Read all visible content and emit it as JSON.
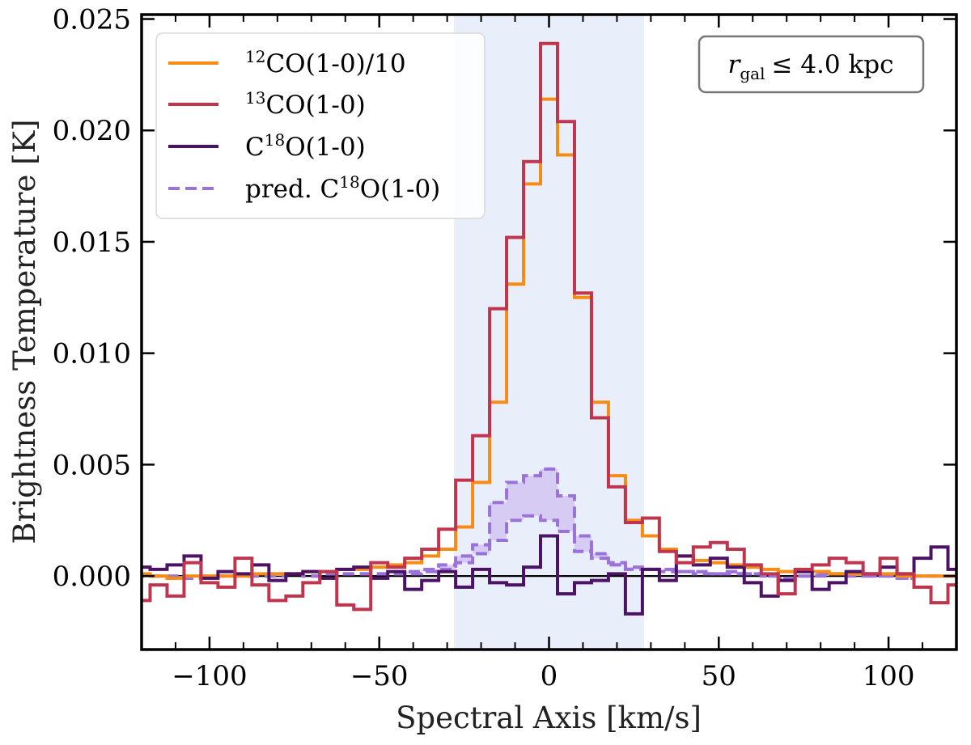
{
  "chart_data": {
    "type": "line",
    "step": true,
    "xlabel": "Spectral Axis [km/s]",
    "ylabel": "Brightness Temperature [K]",
    "xlim": [
      -120,
      120
    ],
    "ylim": [
      -0.0033,
      0.0252
    ],
    "xticks": [
      -100,
      -50,
      0,
      50,
      100
    ],
    "xtick_labels": [
      "−100",
      "−50",
      "0",
      "50",
      "100"
    ],
    "yticks": [
      0.0,
      0.005,
      0.01,
      0.015,
      0.02,
      0.025
    ],
    "ytick_labels": [
      "0.000",
      "0.005",
      "0.010",
      "0.015",
      "0.020",
      "0.025"
    ],
    "zero_line": 0.0,
    "shaded_band": {
      "x_from": -28,
      "x_to": 28,
      "color": "#e9eefb"
    },
    "annotation": {
      "lhs": "r",
      "subscript": "gal",
      "rhs": "≤ 4.0 kpc"
    },
    "x": [
      -120,
      -115,
      -110,
      -105,
      -100,
      -95,
      -90,
      -85,
      -80,
      -75,
      -70,
      -65,
      -60,
      -55,
      -50,
      -45,
      -40,
      -35,
      -30,
      -25,
      -20,
      -15,
      -10,
      -5,
      0,
      5,
      10,
      15,
      20,
      25,
      30,
      35,
      40,
      45,
      50,
      55,
      60,
      65,
      70,
      75,
      80,
      85,
      90,
      95,
      100,
      105,
      110,
      115,
      120
    ],
    "series": [
      {
        "name": "12CO(1-0)/10",
        "legend": {
          "sup": "12",
          "main": "CO(1-0)/10"
        },
        "color": "#f78b14",
        "dash": "solid",
        "values": [
          0.0001,
          0.0,
          -0.0001,
          0.0,
          0.0,
          0.0,
          0.0,
          0.0001,
          0.0001,
          0.0001,
          0.0002,
          0.0002,
          0.0003,
          0.0003,
          0.0004,
          0.0005,
          0.0006,
          0.0009,
          0.0012,
          0.0022,
          0.0042,
          0.0078,
          0.0131,
          0.0176,
          0.0214,
          0.0189,
          0.0125,
          0.0078,
          0.0045,
          0.0025,
          0.0018,
          0.0012,
          0.0009,
          0.0007,
          0.0006,
          0.0005,
          0.0004,
          0.0003,
          0.0002,
          0.0002,
          0.0002,
          0.0001,
          0.0001,
          0.0001,
          0.0001,
          0.0,
          0.0,
          0.0,
          0.0
        ]
      },
      {
        "name": "13CO(1-0)",
        "legend": {
          "sup": "13",
          "main": "CO(1-0)"
        },
        "color": "#c0354e",
        "dash": "solid",
        "values": [
          -0.0011,
          -0.0004,
          -0.0009,
          0.0006,
          -0.0003,
          -0.0005,
          0.0008,
          -0.0004,
          -0.0011,
          -0.0009,
          -0.0003,
          0.0002,
          -0.0013,
          -0.0015,
          0.0006,
          0.0004,
          0.0008,
          0.0012,
          0.0021,
          0.0043,
          0.0063,
          0.012,
          0.0152,
          0.0186,
          0.0239,
          0.0204,
          0.0127,
          0.0071,
          0.004,
          0.0024,
          0.0026,
          0.0011,
          0.0006,
          0.0013,
          0.0015,
          0.0012,
          0.0005,
          0.0001,
          -0.0008,
          0.0003,
          0.0005,
          0.0008,
          0.0006,
          0.0001,
          0.0008,
          0.0001,
          -0.0005,
          -0.0012,
          -0.0004
        ]
      },
      {
        "name": "C18O(1-0)",
        "legend": {
          "pre": "C",
          "sup": "18",
          "main": "O(1-0)"
        },
        "color": "#4b1266",
        "dash": "solid",
        "values": [
          0.0004,
          0.0003,
          0.0005,
          0.0009,
          -0.0001,
          0.0002,
          0.0001,
          0.0005,
          -0.0002,
          0.0001,
          0.0002,
          -0.0001,
          0.0003,
          0.0004,
          -0.0001,
          0.0002,
          -0.0006,
          -0.0002,
          0.0002,
          -0.0005,
          0.0003,
          -0.0003,
          -0.0004,
          0.0004,
          0.0018,
          -0.0008,
          -0.0003,
          -0.0002,
          0.0001,
          -0.0017,
          0.0003,
          -0.0002,
          0.0009,
          0.0005,
          0.0008,
          0.0004,
          -0.0003,
          -0.0009,
          -0.0002,
          0.0002,
          -0.0006,
          -0.0003,
          0.0002,
          0.0001,
          0.0004,
          0.0001,
          0.0008,
          0.0013,
          0.0003
        ]
      },
      {
        "name": "pred. C18O(1-0)",
        "legend": {
          "pre": "pred. C",
          "sup": "18",
          "main": "O(1-0)"
        },
        "color": "#9b72d8",
        "dash": "dashed",
        "fill_color": "#d2c4f0",
        "values_upper": [
          0.0,
          0.0,
          0.0,
          -0.0001,
          0.0,
          0.0,
          0.0,
          0.0,
          0.0001,
          0.0001,
          0.0,
          0.0001,
          0.0001,
          0.0001,
          0.0001,
          0.0001,
          0.0002,
          0.0003,
          0.0005,
          0.0009,
          0.0014,
          0.0033,
          0.0042,
          0.0045,
          0.0048,
          0.0036,
          0.0018,
          0.001,
          0.0006,
          0.0004,
          0.0003,
          0.0003,
          0.0002,
          0.0002,
          0.0001,
          0.0002,
          0.0001,
          0.0,
          -0.0001,
          0.0,
          0.0001,
          0.0001,
          0.0001,
          0.0,
          0.0,
          -0.0001,
          0.0,
          0.0,
          0.0
        ],
        "values_lower": [
          0.0,
          0.0,
          -0.0001,
          -0.0001,
          0.0,
          0.0,
          0.0,
          0.0,
          0.0,
          0.0001,
          0.0,
          0.0001,
          0.0001,
          0.0001,
          0.0001,
          0.0001,
          0.0001,
          0.0002,
          0.0003,
          0.0006,
          0.001,
          0.0016,
          0.0025,
          0.0027,
          0.0025,
          0.002,
          0.0011,
          0.0008,
          0.0005,
          0.0003,
          0.0003,
          0.0002,
          0.0002,
          0.0001,
          0.0001,
          0.0001,
          0.0001,
          0.0,
          -0.0001,
          0.0,
          0.0,
          0.0001,
          0.0,
          0.0,
          0.0,
          -0.0001,
          0.0,
          0.0,
          0.0
        ]
      }
    ]
  }
}
